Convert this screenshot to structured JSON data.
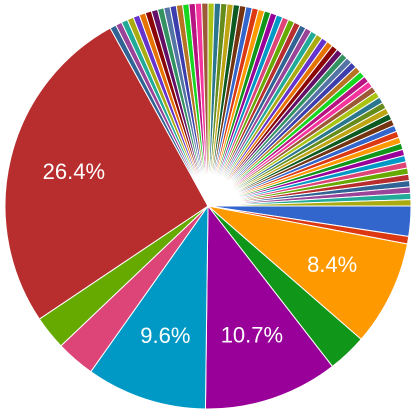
{
  "chart_data": {
    "type": "pie",
    "categories": [
      null,
      null,
      null,
      null,
      null,
      null,
      null,
      null,
      null,
      null,
      null,
      null,
      null,
      null,
      null,
      null,
      null,
      null,
      null,
      null,
      null,
      null,
      null,
      null,
      null,
      null,
      null,
      null,
      null,
      null,
      null,
      null,
      null,
      null,
      null,
      null,
      null,
      null,
      null,
      null,
      null,
      null,
      null,
      null,
      null,
      null,
      null,
      null,
      null,
      null,
      null,
      null,
      null,
      null,
      null,
      null,
      null,
      null,
      null,
      null,
      null,
      null,
      null,
      null,
      null,
      null,
      null,
      null,
      null,
      null,
      null,
      null,
      null,
      null,
      null
    ],
    "values": [
      2.4,
      0.6,
      8.4,
      3.1,
      10.7,
      9.6,
      3.1,
      2.7,
      26.4,
      0.5,
      0.5,
      0.5,
      0.5,
      0.5,
      0.5,
      0.5,
      0.5,
      0.5,
      0.5,
      0.5,
      0.5,
      0.5,
      0.5,
      0.5,
      0.5,
      0.5,
      0.5,
      0.5,
      0.5,
      0.5,
      0.5,
      0.5,
      0.5,
      0.5,
      0.5,
      0.5,
      0.5,
      0.5,
      0.5,
      0.5,
      0.5,
      0.5,
      0.5,
      0.5,
      0.5,
      0.5,
      0.5,
      0.5,
      0.5,
      0.5,
      0.5,
      0.5,
      0.5,
      0.5,
      0.5,
      0.5,
      0.5,
      0.5,
      0.5,
      0.5,
      0.5,
      0.5,
      0.5,
      0.5,
      0.5,
      0.5,
      0.5,
      0.5,
      0.5,
      0.5,
      0.5,
      0.5,
      0.5,
      0.5,
      0.5
    ],
    "value_labels": [
      null,
      null,
      "8.4%",
      null,
      "10.7%",
      "9.6%",
      null,
      null,
      "26.4%",
      null,
      null,
      null,
      null,
      null,
      null,
      null,
      null,
      null,
      null,
      null,
      null,
      null,
      null,
      null,
      null,
      null,
      null,
      null,
      null,
      null,
      null,
      null,
      null,
      null,
      null,
      null,
      null,
      null,
      null,
      null,
      null,
      null,
      null,
      null,
      null,
      null,
      null,
      null,
      null,
      null,
      null,
      null,
      null,
      null,
      null,
      null,
      null,
      null,
      null,
      null,
      null,
      null,
      null,
      null,
      null,
      null,
      null,
      null,
      null,
      null,
      null,
      null,
      null,
      null,
      null
    ],
    "colors": [
      "#3366cc",
      "#dc3912",
      "#ff9900",
      "#109618",
      "#990099",
      "#0099c6",
      "#dd4477",
      "#66aa00",
      "#b82e2e",
      "#316395",
      "#994499",
      "#22aa99",
      "#aaaa11",
      "#6633cc",
      "#e67300",
      "#8b0707",
      "#651067",
      "#329262",
      "#5574a6",
      "#3b3eac",
      "#b77322",
      "#16d620",
      "#b91383",
      "#f4359e",
      "#9c5935",
      "#a9c413",
      "#2a778d",
      "#668d1c",
      "#bea413",
      "#0c5922",
      "#743411"
    ]
  }
}
